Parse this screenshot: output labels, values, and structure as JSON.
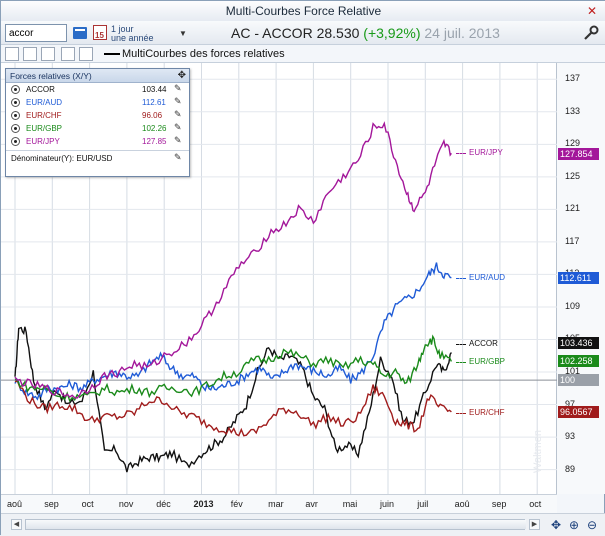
{
  "window": {
    "title": "Multi-Courbes Force Relative",
    "close_glyph": "✕"
  },
  "toolbar": {
    "ticker_value": "accor",
    "period_line1": "1 jour",
    "period_line2": "une année",
    "calendar_day": "15",
    "quote_code": "AC - ACCOR",
    "quote_price": "28.530",
    "quote_change": "(+3,92%)",
    "quote_date": "24 juil. 2013",
    "icons": [
      "book-icon",
      "period-calendar-icon",
      "dropdown-arrow-icon",
      "wrench-icon"
    ]
  },
  "toolbar2": {
    "indicator_label": "MultiCourbes des forces relatives",
    "icons": [
      "draw-tool-icon",
      "line-chart-icon",
      "chart-type-icon",
      "text-tool-icon",
      "checkbox-icon"
    ]
  },
  "legend": {
    "title": "Forces relatives (X/Y)",
    "items": [
      {
        "name": "ACCOR",
        "value": "103.44",
        "color": "#111111"
      },
      {
        "name": "EUR/AUD",
        "value": "112.61",
        "color": "#1f5bd6"
      },
      {
        "name": "EUR/CHF",
        "value": "96.06",
        "color": "#a01c1c"
      },
      {
        "name": "EUR/GBP",
        "value": "102.26",
        "color": "#1a8a1a"
      },
      {
        "name": "EUR/JPY",
        "value": "127.85",
        "color": "#a3179a"
      }
    ],
    "denominator": "Dénominateur(Y): EUR/USD"
  },
  "chart_data": {
    "type": "line",
    "x": [
      "août",
      "sep",
      "oct",
      "nov",
      "déc",
      "2013",
      "fév",
      "mar",
      "avr",
      "mai",
      "juin",
      "juil",
      "août",
      "sep",
      "oct"
    ],
    "ylim": [
      86,
      139
    ],
    "yticks": [
      89,
      93,
      97,
      101,
      105,
      109,
      113,
      117,
      121,
      125,
      129,
      133,
      137
    ],
    "base_line_value": 100,
    "series": [
      {
        "name": "ACCOR",
        "color": "#111111",
        "last": "103.436",
        "points": [
          [
            0,
            100
          ],
          [
            0.1,
            106.5
          ],
          [
            0.3,
            106
          ],
          [
            0.5,
            100
          ],
          [
            0.8,
            96.5
          ],
          [
            1.1,
            99
          ],
          [
            1.4,
            97
          ],
          [
            1.8,
            97.5
          ],
          [
            2.1,
            101
          ],
          [
            2.4,
            91
          ],
          [
            2.7,
            91.5
          ],
          [
            3.0,
            89
          ],
          [
            3.3,
            90
          ],
          [
            3.6,
            90.5
          ],
          [
            3.9,
            90.5
          ],
          [
            4.2,
            91
          ],
          [
            4.6,
            89.5
          ],
          [
            5.0,
            91
          ],
          [
            5.3,
            92
          ],
          [
            5.6,
            93
          ],
          [
            5.9,
            95
          ],
          [
            6.2,
            97
          ],
          [
            6.5,
            101
          ],
          [
            6.8,
            104
          ],
          [
            7.1,
            102.5
          ],
          [
            7.4,
            103
          ],
          [
            7.7,
            101.5
          ],
          [
            8.0,
            98
          ],
          [
            8.3,
            96.5
          ],
          [
            8.6,
            91.5
          ],
          [
            8.9,
            92
          ],
          [
            9.2,
            91
          ],
          [
            9.5,
            96
          ],
          [
            9.8,
            102.5
          ],
          [
            10.1,
            100.5
          ],
          [
            10.4,
            95
          ],
          [
            10.7,
            95
          ],
          [
            11.0,
            98.5
          ],
          [
            11.3,
            102
          ],
          [
            11.5,
            101
          ],
          [
            11.7,
            103.4
          ]
        ]
      },
      {
        "name": "EUR/AUD",
        "color": "#1f5bd6",
        "last": "112.611",
        "points": [
          [
            0,
            100
          ],
          [
            0.3,
            98.5
          ],
          [
            0.6,
            98
          ],
          [
            0.9,
            99
          ],
          [
            1.2,
            99
          ],
          [
            1.5,
            99.5
          ],
          [
            1.8,
            99
          ],
          [
            2.1,
            100
          ],
          [
            2.4,
            100.5
          ],
          [
            2.7,
            101
          ],
          [
            3.0,
            100.5
          ],
          [
            3.3,
            100.5
          ],
          [
            3.6,
            102
          ],
          [
            3.9,
            103
          ],
          [
            4.2,
            101.5
          ],
          [
            4.5,
            100.5
          ],
          [
            4.8,
            100.5
          ],
          [
            5.1,
            99
          ],
          [
            5.4,
            99
          ],
          [
            5.7,
            99.5
          ],
          [
            6.0,
            100
          ],
          [
            6.3,
            101
          ],
          [
            6.6,
            101.5
          ],
          [
            6.9,
            100
          ],
          [
            7.2,
            101
          ],
          [
            7.5,
            102
          ],
          [
            7.8,
            101.5
          ],
          [
            8.1,
            101
          ],
          [
            8.4,
            100.5
          ],
          [
            8.7,
            101.5
          ],
          [
            9.0,
            100
          ],
          [
            9.3,
            101
          ],
          [
            9.6,
            103
          ],
          [
            9.9,
            107
          ],
          [
            10.2,
            109
          ],
          [
            10.5,
            110
          ],
          [
            10.8,
            111
          ],
          [
            11.1,
            113
          ],
          [
            11.3,
            114
          ],
          [
            11.5,
            113
          ],
          [
            11.7,
            112.6
          ]
        ]
      },
      {
        "name": "EUR/CHF",
        "color": "#a01c1c",
        "last": "96.0567",
        "points": [
          [
            0,
            100
          ],
          [
            0.4,
            97.5
          ],
          [
            0.8,
            96.5
          ],
          [
            1.2,
            97
          ],
          [
            1.6,
            96.5
          ],
          [
            2.0,
            95
          ],
          [
            2.4,
            95.5
          ],
          [
            2.8,
            95.5
          ],
          [
            3.2,
            96
          ],
          [
            3.6,
            97.5
          ],
          [
            4.0,
            97.5
          ],
          [
            4.4,
            96
          ],
          [
            4.8,
            95.5
          ],
          [
            5.2,
            94.5
          ],
          [
            5.6,
            94
          ],
          [
            6.0,
            93.5
          ],
          [
            6.4,
            93.5
          ],
          [
            6.8,
            95
          ],
          [
            7.2,
            96.5
          ],
          [
            7.6,
            96
          ],
          [
            8.0,
            94.5
          ],
          [
            8.4,
            95.5
          ],
          [
            8.8,
            94.5
          ],
          [
            9.2,
            95.5
          ],
          [
            9.6,
            99
          ],
          [
            9.9,
            98
          ],
          [
            10.2,
            95
          ],
          [
            10.5,
            94.5
          ],
          [
            10.8,
            94
          ],
          [
            11.1,
            98
          ],
          [
            11.4,
            96.5
          ],
          [
            11.7,
            96.1
          ]
        ]
      },
      {
        "name": "EUR/GBP",
        "color": "#1a8a1a",
        "last": "102.258",
        "points": [
          [
            0,
            100
          ],
          [
            0.4,
            99
          ],
          [
            0.8,
            99
          ],
          [
            1.2,
            98
          ],
          [
            1.6,
            98
          ],
          [
            2.0,
            98
          ],
          [
            2.4,
            99
          ],
          [
            2.8,
            98.5
          ],
          [
            3.2,
            99
          ],
          [
            3.6,
            98.5
          ],
          [
            4.0,
            99
          ],
          [
            4.4,
            99
          ],
          [
            4.8,
            98.5
          ],
          [
            5.2,
            99.5
          ],
          [
            5.6,
            100.5
          ],
          [
            6.0,
            101
          ],
          [
            6.4,
            102.5
          ],
          [
            6.8,
            102.5
          ],
          [
            7.2,
            103.5
          ],
          [
            7.6,
            103
          ],
          [
            8.0,
            102
          ],
          [
            8.4,
            102.5
          ],
          [
            8.8,
            101.5
          ],
          [
            9.2,
            102.5
          ],
          [
            9.6,
            102
          ],
          [
            9.9,
            100.5
          ],
          [
            10.2,
            101
          ],
          [
            10.5,
            99.5
          ],
          [
            10.8,
            102
          ],
          [
            11.0,
            104.5
          ],
          [
            11.2,
            105
          ],
          [
            11.4,
            103
          ],
          [
            11.7,
            102.3
          ]
        ]
      },
      {
        "name": "EUR/JPY",
        "color": "#a3179a",
        "last": "127.854",
        "points": [
          [
            0,
            100
          ],
          [
            0.4,
            99.5
          ],
          [
            0.8,
            99
          ],
          [
            1.2,
            98.5
          ],
          [
            1.6,
            98
          ],
          [
            2.0,
            99
          ],
          [
            2.4,
            100.5
          ],
          [
            2.8,
            101
          ],
          [
            3.2,
            102
          ],
          [
            3.6,
            101.5
          ],
          [
            4.0,
            103
          ],
          [
            4.4,
            104
          ],
          [
            4.8,
            105.5
          ],
          [
            5.2,
            108
          ],
          [
            5.6,
            111
          ],
          [
            6.0,
            114
          ],
          [
            6.4,
            115.5
          ],
          [
            6.8,
            118
          ],
          [
            7.2,
            119
          ],
          [
            7.6,
            121
          ],
          [
            8.0,
            119.5
          ],
          [
            8.4,
            123
          ],
          [
            8.8,
            125
          ],
          [
            9.2,
            127
          ],
          [
            9.6,
            131
          ],
          [
            9.9,
            131.5
          ],
          [
            10.2,
            127
          ],
          [
            10.5,
            123
          ],
          [
            10.7,
            121
          ],
          [
            11.0,
            123
          ],
          [
            11.3,
            127
          ],
          [
            11.5,
            129
          ],
          [
            11.7,
            127.9
          ]
        ]
      }
    ]
  },
  "y_axis": {
    "ticks": [
      "137",
      "133",
      "129",
      "125",
      "121",
      "117",
      "113",
      "109",
      "105",
      "101",
      "97",
      "93",
      "89"
    ],
    "base_label": "100"
  },
  "x_axis": {
    "ticks": [
      "aoû",
      "sep",
      "oct",
      "nov",
      "déc",
      "2013",
      "fév",
      "mar",
      "avr",
      "mai",
      "juin",
      "juil",
      "aoû",
      "sep",
      "oct"
    ]
  },
  "series_labels": [
    "EUR/JPY",
    "EUR/AUD",
    "ACCOR",
    "EUR/GBP",
    "EUR/CHF"
  ],
  "value_tags": [
    "127.854",
    "112.611",
    "103.436",
    "102.258",
    "100",
    "96.0567"
  ],
  "watermark": "Waltmen",
  "scrollbar": {
    "left_glyph": "◀",
    "right_glyph": "▶"
  },
  "nav_icons": {
    "pan": "✥",
    "zoom_in": "⊕",
    "zoom_out": "⊖"
  }
}
